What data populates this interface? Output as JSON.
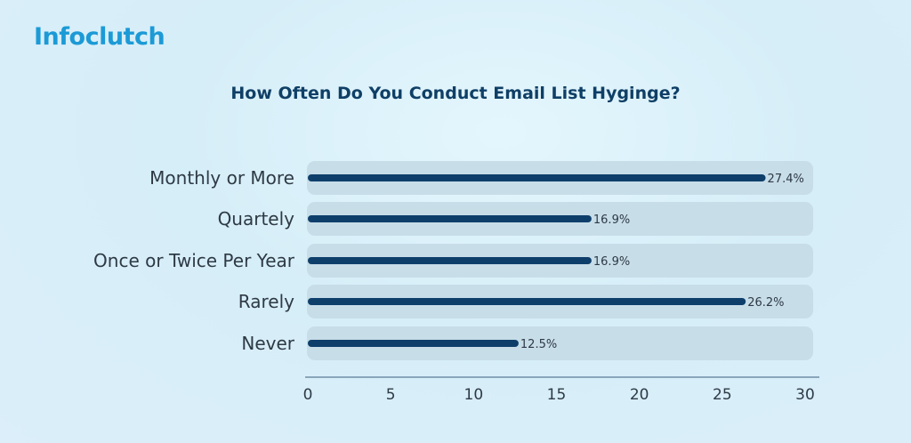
{
  "brand": {
    "logo_text": "Infoclutch",
    "color": "#1c9ad6"
  },
  "chart_data": {
    "type": "bar",
    "orientation": "horizontal",
    "title": "How Often Do You Conduct Email List Hyginge?",
    "categories": [
      "Monthly or More",
      "Quartely",
      "Once or Twice Per Year",
      "Rarely",
      "Never"
    ],
    "values": [
      27.4,
      16.9,
      16.9,
      26.2,
      12.5
    ],
    "value_labels": [
      "27.4%",
      "16.9%",
      "16.9%",
      "26.2%",
      "12.5%"
    ],
    "xlim": [
      0,
      30
    ],
    "xticks": [
      "0",
      "5",
      "10",
      "15",
      "20",
      "25",
      "30"
    ],
    "grid": false,
    "bar_color": "#0e3f6b",
    "track_color": "#c7dde8"
  }
}
